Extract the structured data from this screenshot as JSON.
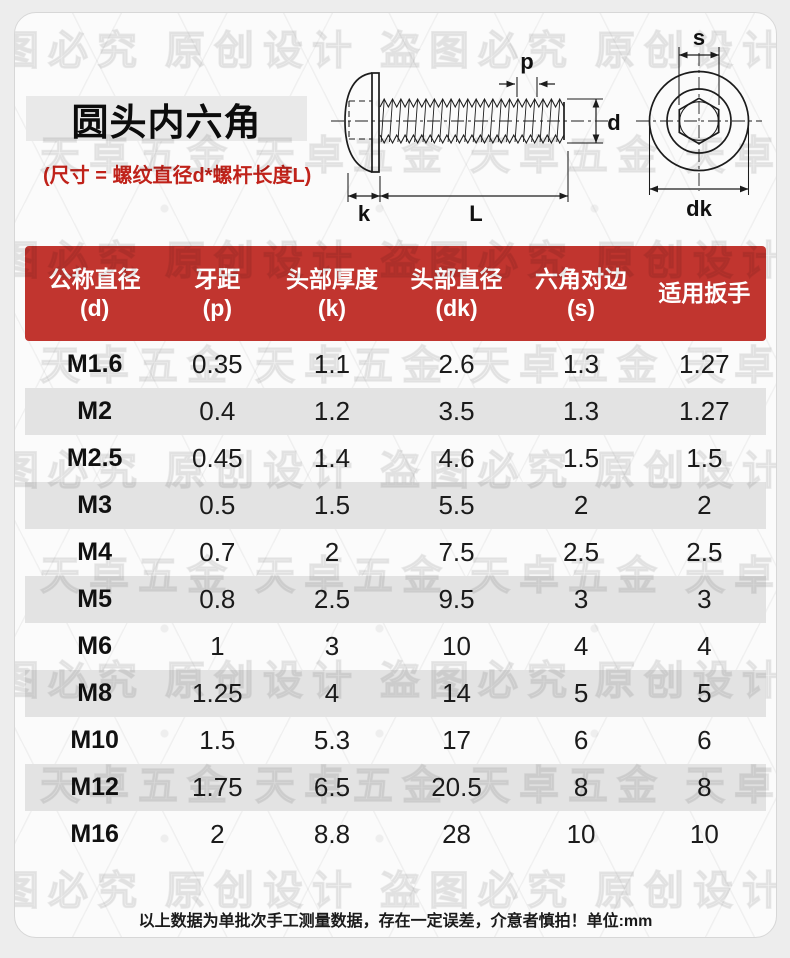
{
  "header": {
    "title": "圆头内六角",
    "size_note": "(尺寸 = 螺纹直径d*螺杆长度L)"
  },
  "diagram": {
    "labels": {
      "p": "p",
      "d": "d",
      "k": "k",
      "L": "L",
      "s": "s",
      "dk": "dk"
    }
  },
  "table": {
    "columns": [
      {
        "line1": "公称直径",
        "line2": "(d)"
      },
      {
        "line1": "牙距",
        "line2": "(p)"
      },
      {
        "line1": "头部厚度",
        "line2": "(k)"
      },
      {
        "line1": "头部直径",
        "line2": "(dk)"
      },
      {
        "line1": "六角对边",
        "line2": "(s)"
      },
      {
        "line1": "适用扳手",
        "line2": ""
      }
    ],
    "rows": [
      [
        "M1.6",
        "0.35",
        "1.1",
        "2.6",
        "1.3",
        "1.27"
      ],
      [
        "M2",
        "0.4",
        "1.2",
        "3.5",
        "1.3",
        "1.27"
      ],
      [
        "M2.5",
        "0.45",
        "1.4",
        "4.6",
        "1.5",
        "1.5"
      ],
      [
        "M3",
        "0.5",
        "1.5",
        "5.5",
        "2",
        "2"
      ],
      [
        "M4",
        "0.7",
        "2",
        "7.5",
        "2.5",
        "2.5"
      ],
      [
        "M5",
        "0.8",
        "2.5",
        "9.5",
        "3",
        "3"
      ],
      [
        "M6",
        "1",
        "3",
        "10",
        "4",
        "4"
      ],
      [
        "M8",
        "1.25",
        "4",
        "14",
        "5",
        "5"
      ],
      [
        "M10",
        "1.5",
        "5.3",
        "17",
        "6",
        "6"
      ],
      [
        "M12",
        "1.75",
        "6.5",
        "20.5",
        "8",
        "8"
      ],
      [
        "M16",
        "2",
        "8.8",
        "28",
        "10",
        "10"
      ]
    ]
  },
  "footer": {
    "note": "以上数据为单批次手工测量数据，存在一定误差，介意者慎拍！单位:mm"
  },
  "watermarks": {
    "brand": "天卓五金",
    "original": "原创设计",
    "notice": "盗图必究"
  },
  "colors": {
    "header_red": "#c1352f",
    "note_red": "#c0221a",
    "row_alt": "#e3e3e3",
    "title_bar": "#e9e9e9",
    "line": "#1c1c1c"
  }
}
